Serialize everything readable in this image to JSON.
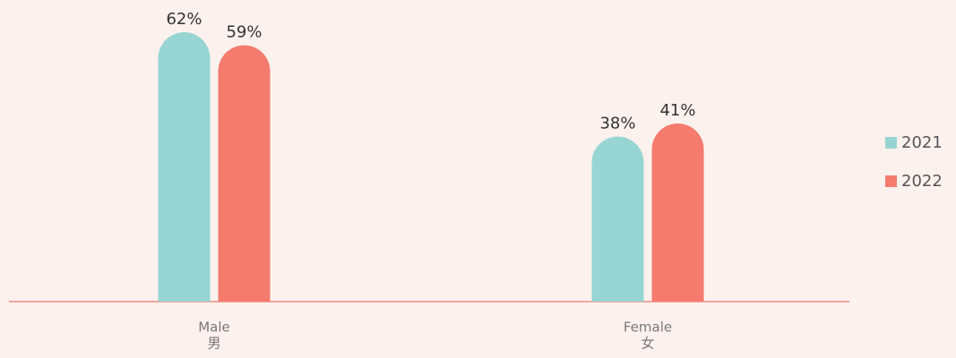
{
  "chart_data": {
    "type": "bar",
    "categories": [
      [
        "Male",
        "男"
      ],
      [
        "Female",
        "女"
      ]
    ],
    "series": [
      {
        "name": "2021",
        "color": "#97d5d3",
        "values": [
          62,
          38
        ],
        "value_labels": [
          "62%",
          "38%"
        ]
      },
      {
        "name": "2022",
        "color": "#f47b6e",
        "values": [
          59,
          41
        ],
        "value_labels": [
          "59%",
          "41%"
        ]
      }
    ],
    "legend": "right"
  }
}
